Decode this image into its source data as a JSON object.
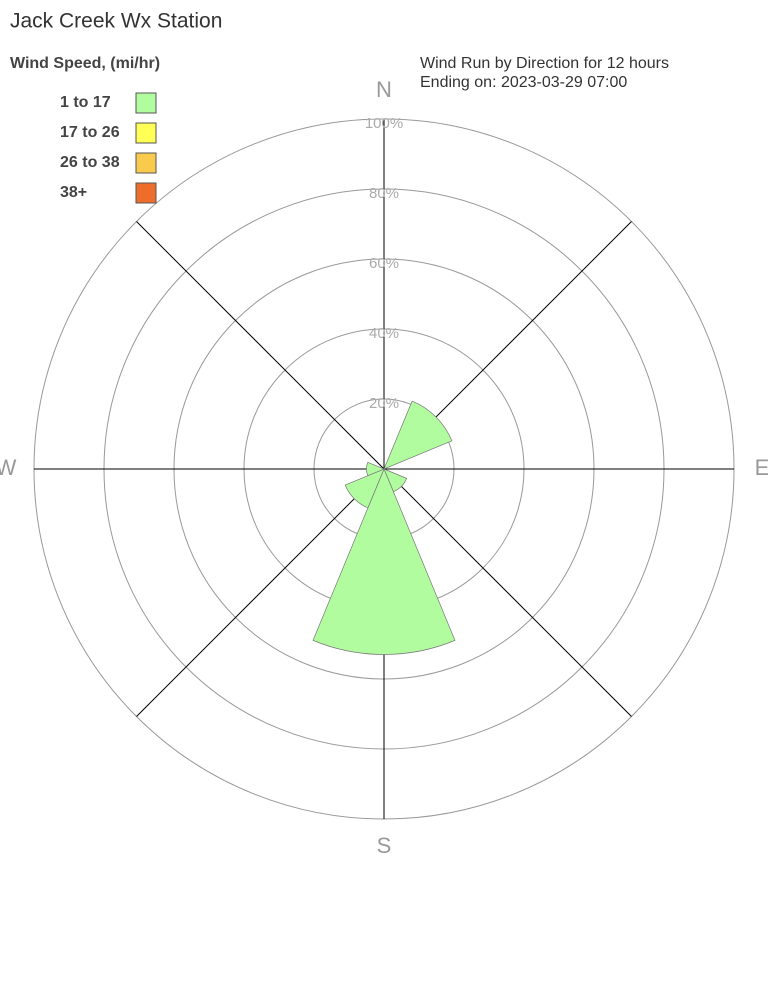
{
  "chart_data": {
    "type": "windrose",
    "title": "Jack Creek Wx Station",
    "legend_title": "Wind Speed, (mi/hr)",
    "subtitle": [
      "Wind Run by Direction for 12 hours",
      "Ending on: 2023-03-29 07:00"
    ],
    "categories": [
      "N",
      null,
      "E",
      null,
      "S",
      null,
      "W",
      null
    ],
    "series": [
      {
        "name": "1 to 17",
        "color": "#b2fca0",
        "values": [
          0,
          21,
          0,
          7,
          53,
          12,
          5,
          0
        ]
      },
      {
        "name": "17 to 26",
        "color": "#ffff55",
        "values": [
          0,
          0,
          0,
          0,
          0,
          0,
          0,
          0
        ]
      },
      {
        "name": "26 to 38",
        "color": "#f9cb4d",
        "values": [
          0,
          0,
          0,
          0,
          0,
          0,
          0,
          0
        ]
      },
      {
        "name": "38+",
        "color": "#ee6d2b",
        "values": [
          0,
          0,
          0,
          0,
          0,
          0,
          0,
          0
        ]
      }
    ],
    "rlim": [
      0,
      100
    ],
    "rticks": [
      {
        "value": 20,
        "label": "20%"
      },
      {
        "value": 40,
        "label": "40%"
      },
      {
        "value": 60,
        "label": "60%"
      },
      {
        "value": 80,
        "label": "80%"
      },
      {
        "value": 100,
        "label": "100%"
      }
    ],
    "grid": true
  }
}
